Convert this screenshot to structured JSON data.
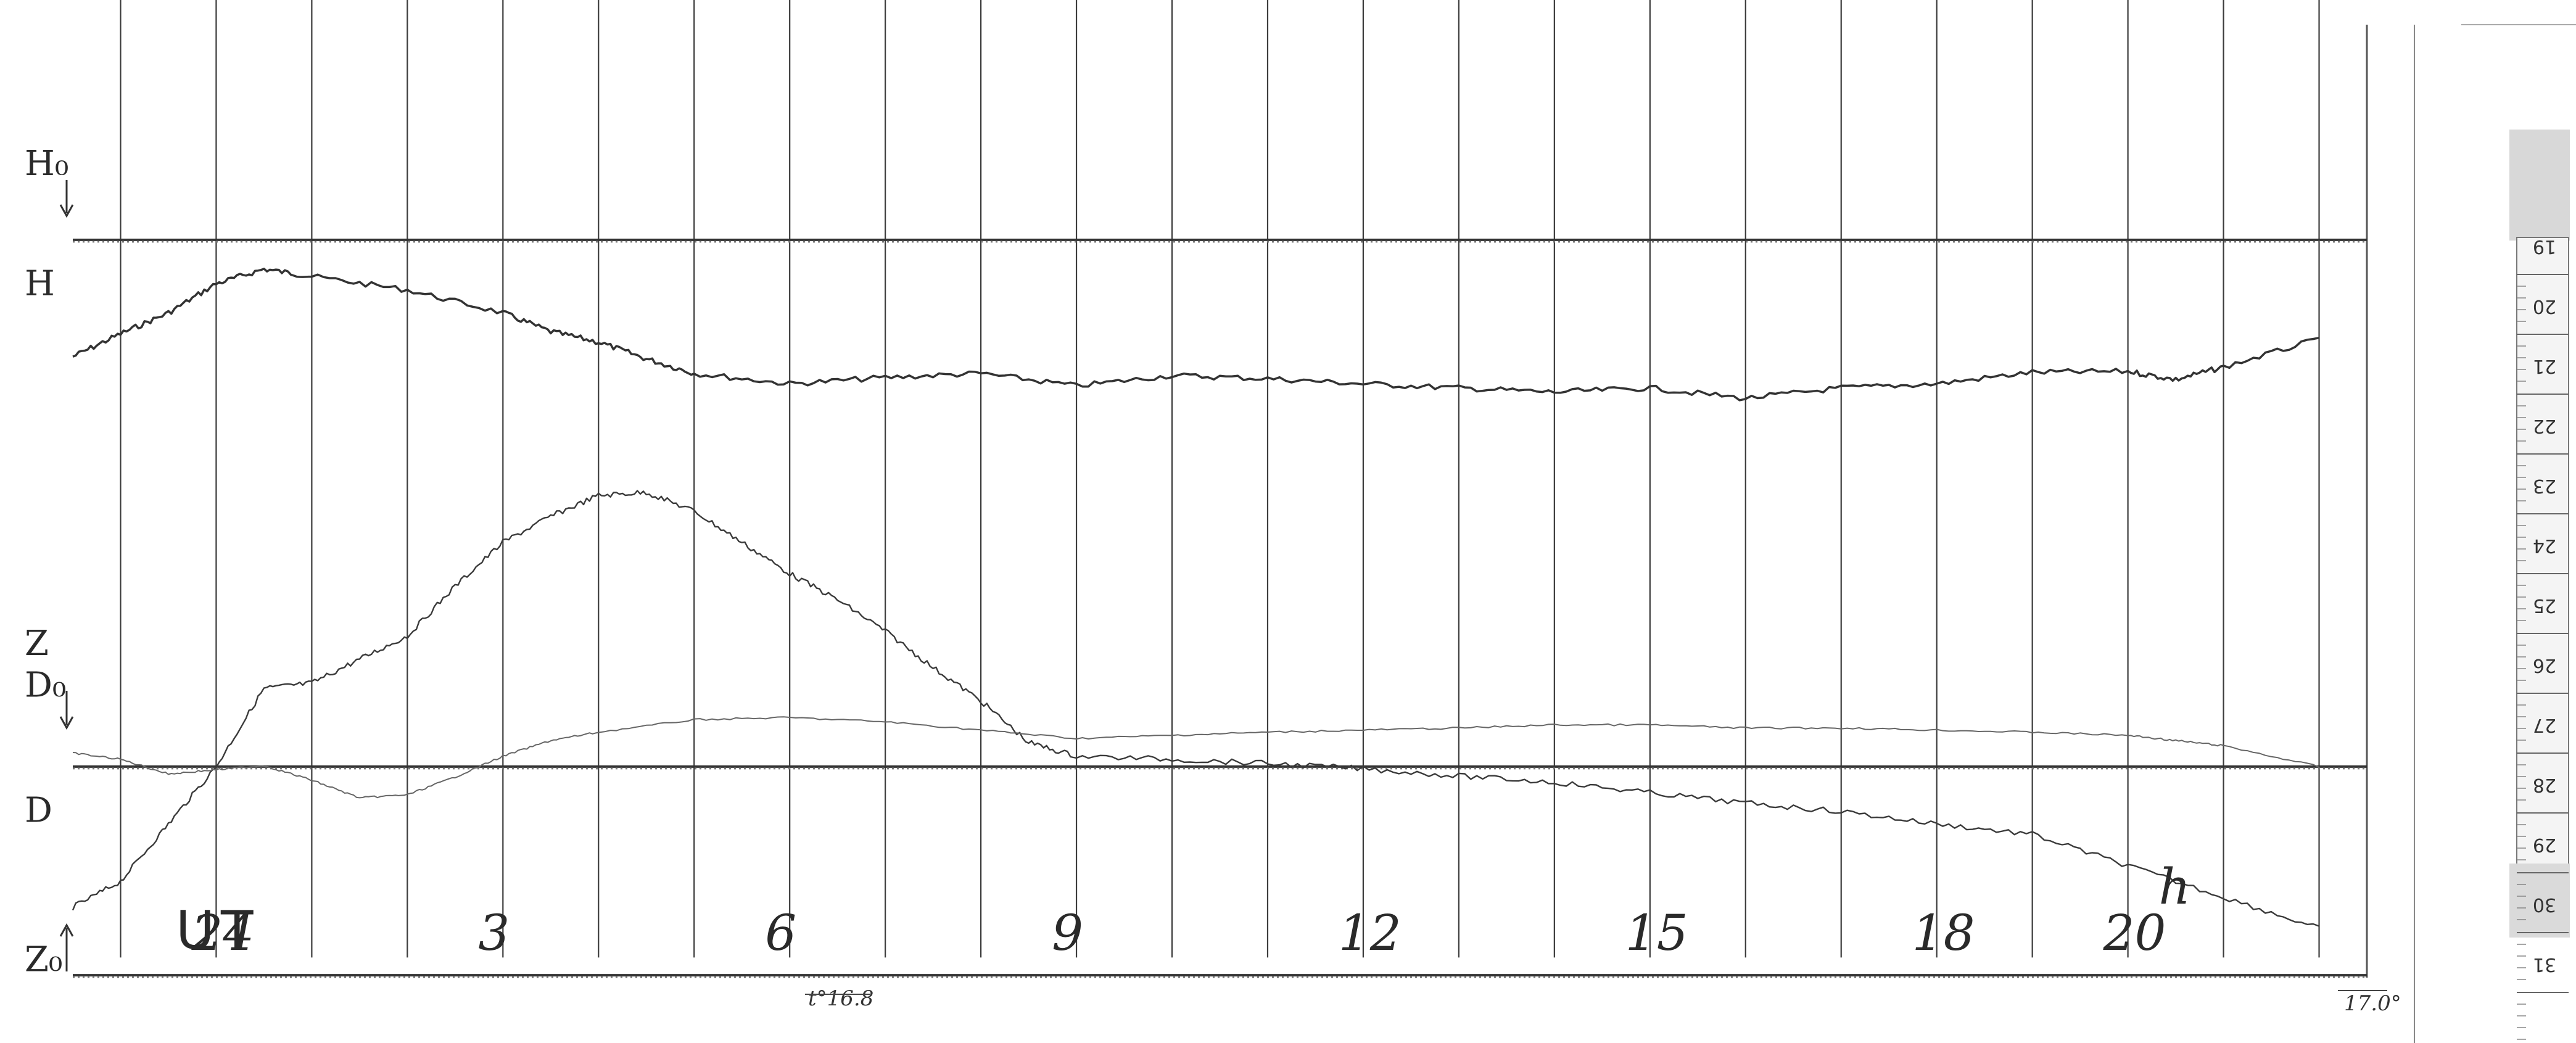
{
  "chart_data": {
    "type": "line",
    "title": "",
    "xlabel": "UT",
    "x_ticks": [
      "24",
      "3",
      "6",
      "9",
      "12",
      "15",
      "18",
      "20"
    ],
    "x_tick_hours": [
      0,
      3,
      6,
      9,
      12,
      15,
      18,
      20
    ],
    "x_tick_suffix": "h",
    "xlim": [
      -1.5,
      22.5
    ],
    "hour_lines": [
      -1,
      0,
      1,
      2,
      3,
      4,
      5,
      6,
      7,
      8,
      9,
      10,
      11,
      12,
      13,
      14,
      15,
      16,
      17,
      18,
      19,
      20,
      21,
      22
    ],
    "baselines": [
      {
        "name": "H₀",
        "level": 0.23
      },
      {
        "name": "D₀",
        "level": 0.735
      },
      {
        "name": "Z₀",
        "level": 0.935
      }
    ],
    "series": [
      {
        "name": "H",
        "color": "#333333",
        "stroke": 3.5,
        "x": [
          -1.5,
          -1.0,
          -0.5,
          0.0,
          0.5,
          1.0,
          2.0,
          3.0,
          3.5,
          4.0,
          4.5,
          5.0,
          6.0,
          7.0,
          8.0,
          9.0,
          10.0,
          11.0,
          12.0,
          13.0,
          14.0,
          15.0,
          16.0,
          17.0,
          18.0,
          19.0,
          20.0,
          20.5,
          21.0,
          22.0
        ],
        "y": [
          0.342,
          0.32,
          0.3,
          0.272,
          0.258,
          0.265,
          0.278,
          0.3,
          0.318,
          0.328,
          0.344,
          0.358,
          0.368,
          0.362,
          0.358,
          0.37,
          0.36,
          0.363,
          0.368,
          0.372,
          0.376,
          0.372,
          0.382,
          0.372,
          0.368,
          0.357,
          0.356,
          0.364,
          0.352,
          0.325
        ]
      },
      {
        "name": "D",
        "color": "#3a3a3a",
        "stroke": 2.4,
        "x": [
          -1.5,
          -1.0,
          -0.5,
          0.0,
          0.5,
          1.0,
          1.5,
          2.0,
          2.5,
          3.0,
          3.5,
          4.0,
          4.5,
          5.0,
          5.5,
          6.0,
          6.5,
          7.0,
          7.5,
          8.0,
          8.5,
          9.0,
          10.0,
          11.0,
          12.0,
          13.0,
          14.0,
          15.0,
          16.0,
          17.0,
          18.0,
          19.0,
          20.0,
          21.0,
          22.0
        ],
        "y": [
          0.87,
          0.845,
          0.79,
          0.735,
          0.66,
          0.655,
          0.632,
          0.61,
          0.562,
          0.52,
          0.495,
          0.475,
          0.472,
          0.49,
          0.52,
          0.55,
          0.575,
          0.605,
          0.64,
          0.672,
          0.712,
          0.725,
          0.728,
          0.732,
          0.737,
          0.744,
          0.75,
          0.76,
          0.77,
          0.778,
          0.79,
          0.8,
          0.83,
          0.86,
          0.89
        ]
      },
      {
        "name": "Z",
        "color": "#666666",
        "stroke": 2.0,
        "x": [
          -1.5,
          -1.0,
          -0.5,
          0.0,
          0.5,
          1.0,
          1.5,
          2.0,
          2.5,
          3.0,
          3.5,
          4.0,
          5.0,
          6.0,
          7.0,
          8.0,
          9.0,
          10.0,
          11.0,
          12.0,
          13.0,
          14.0,
          15.0,
          16.0,
          17.0,
          18.0,
          19.0,
          20.0,
          20.5,
          21.0,
          22.0
        ],
        "y": [
          0.722,
          0.728,
          0.742,
          0.738,
          0.734,
          0.748,
          0.765,
          0.762,
          0.745,
          0.725,
          0.71,
          0.702,
          0.69,
          0.688,
          0.692,
          0.7,
          0.708,
          0.705,
          0.702,
          0.7,
          0.698,
          0.695,
          0.695,
          0.698,
          0.698,
          0.7,
          0.702,
          0.705,
          0.71,
          0.715,
          0.735
        ]
      }
    ],
    "axis_labels": [
      {
        "text": "H₀",
        "level": 0.155
      },
      {
        "text": "H",
        "level": 0.27
      },
      {
        "text": "Z",
        "level": 0.615
      },
      {
        "text": "D₀",
        "level": 0.655
      },
      {
        "text": "D",
        "level": 0.775
      },
      {
        "text": "Z₀",
        "level": 0.918
      }
    ],
    "annotations": [
      "t°16.8",
      "17.0°"
    ],
    "grid": true,
    "legend": "none"
  },
  "side_scale": {
    "numbers": [
      "19",
      "20",
      "21",
      "22",
      "23",
      "24",
      "25",
      "26",
      "27",
      "28",
      "29",
      "30",
      "31"
    ]
  }
}
